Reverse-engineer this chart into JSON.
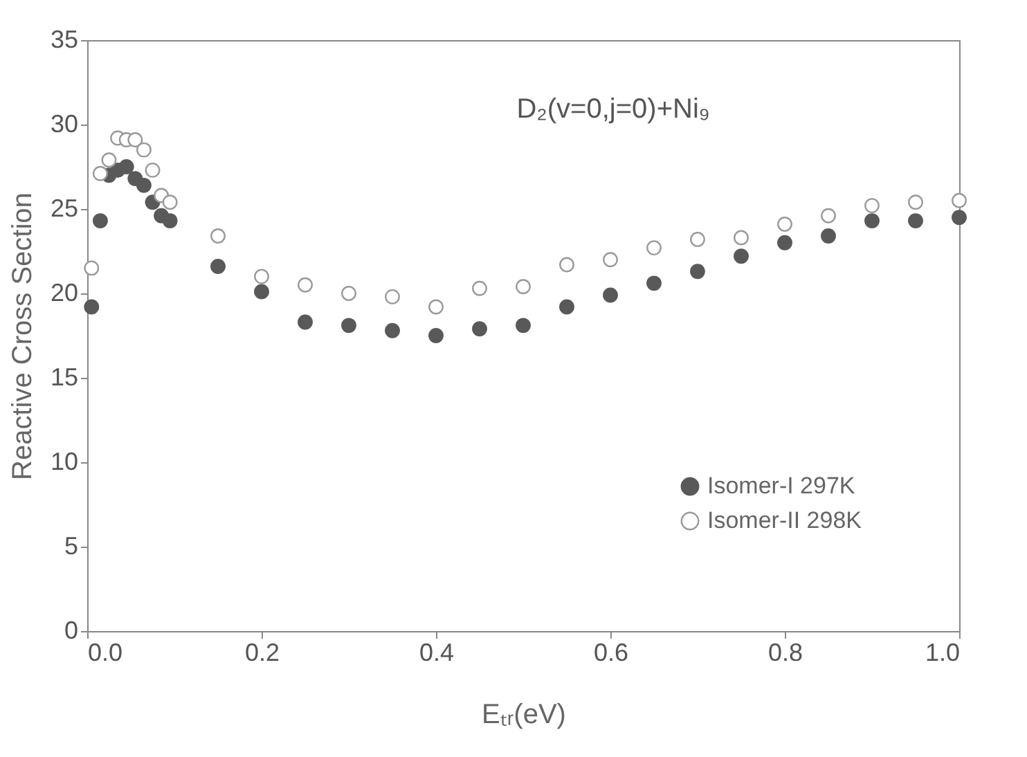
{
  "chart_data": {
    "type": "scatter",
    "xlabel": "Eₜᵣ(eV)",
    "ylabel": "Reactive Cross Section",
    "annotations": [
      "D₂(v=0,j=0)+Ni₉"
    ],
    "x": [
      0.005,
      0.015,
      0.025,
      0.035,
      0.045,
      0.055,
      0.065,
      0.075,
      0.085,
      0.095,
      0.15,
      0.2,
      0.25,
      0.3,
      0.35,
      0.4,
      0.45,
      0.5,
      0.55,
      0.6,
      0.65,
      0.7,
      0.75,
      0.8,
      0.85,
      0.9,
      0.95,
      1.0
    ],
    "series": [
      {
        "name": "Isomer-I 297K",
        "color": "#595959",
        "values": [
          19.2,
          24.3,
          27.0,
          27.3,
          27.5,
          26.8,
          26.4,
          25.4,
          24.6,
          24.3,
          21.6,
          20.1,
          18.3,
          18.1,
          17.8,
          17.5,
          17.9,
          18.1,
          19.2,
          19.9,
          20.6,
          21.3,
          22.2,
          23.0,
          23.4,
          24.3,
          24.3,
          24.5
        ]
      },
      {
        "name": "Isomer-II 298K",
        "color": "#9a9a9a",
        "values": [
          21.5,
          27.1,
          27.9,
          29.2,
          29.1,
          29.1,
          28.5,
          27.3,
          25.8,
          25.4,
          23.4,
          21.0,
          20.5,
          20.0,
          19.8,
          19.2,
          20.3,
          20.4,
          21.7,
          22.0,
          22.7,
          23.2,
          23.3,
          24.1,
          24.6,
          25.2,
          25.4,
          25.5
        ]
      }
    ],
    "xlim": [
      0,
      1
    ],
    "ylim": [
      0,
      35
    ],
    "xticks": [
      {
        "value": 0,
        "label": "0.0"
      },
      {
        "value": 0.2,
        "label": "0.2"
      },
      {
        "value": 0.4,
        "label": "0.4"
      },
      {
        "value": 0.6,
        "label": "0.6"
      },
      {
        "value": 0.8,
        "label": "0.8"
      },
      {
        "value": 1,
        "label": "1.0"
      }
    ],
    "yticks": [
      0,
      5,
      10,
      15,
      20,
      25,
      30,
      35
    ],
    "grid": false,
    "legend": "bottom right",
    "marker": "circle"
  }
}
